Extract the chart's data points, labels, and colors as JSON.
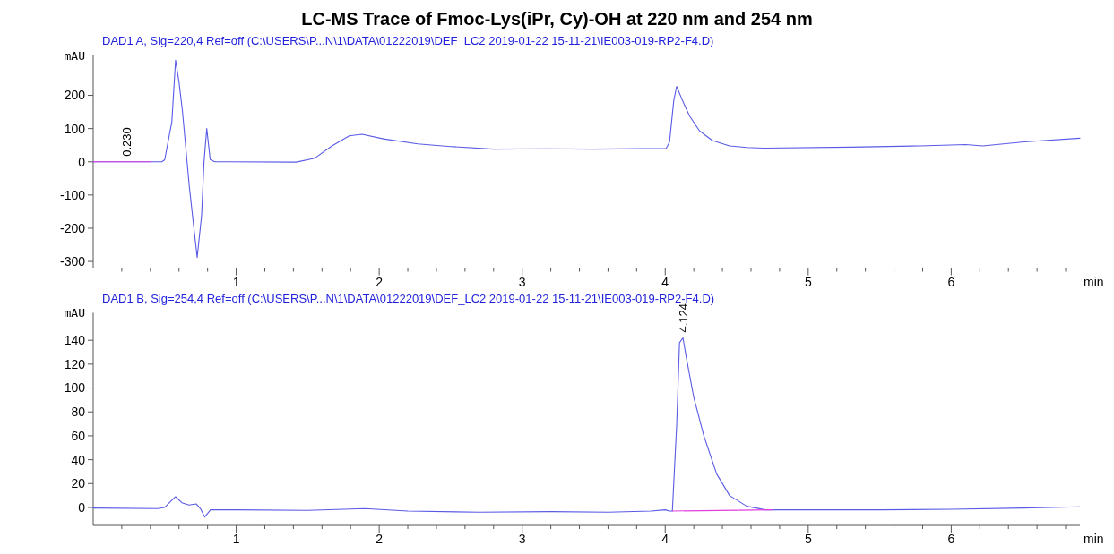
{
  "chart_data": [
    {
      "type": "line",
      "title": "LC-MS Trace of Fmoc-Lys(iPr, Cy)-OH at 220 nm and 254 nm",
      "subtitle": "DAD1 A, Sig=220,4 Ref=off (C:\\USERS\\P...N\\1\\DATA\\01222019\\DEF_LC2 2019-01-22 15-11-21\\IE003-019-RP2-F4.D)",
      "ylabel": "mAU",
      "xlabel": "min",
      "xlim": [
        0,
        6.9
      ],
      "ylim": [
        -320,
        320
      ],
      "xticks": [
        {
          "value": 0.2,
          "label": null
        },
        {
          "value": 0.4,
          "label": null
        },
        {
          "value": 0.6,
          "label": null
        },
        {
          "value": 0.8,
          "label": null
        },
        1,
        {
          "value": 1.2,
          "label": null
        },
        {
          "value": 1.4,
          "label": null
        },
        {
          "value": 1.6,
          "label": null
        },
        {
          "value": 1.8,
          "label": null
        },
        2,
        {
          "value": 2.2,
          "label": null
        },
        {
          "value": 2.4,
          "label": null
        },
        {
          "value": 2.6,
          "label": null
        },
        {
          "value": 2.8,
          "label": null
        },
        3,
        {
          "value": 3.2,
          "label": null
        },
        {
          "value": 3.4,
          "label": null
        },
        {
          "value": 3.6,
          "label": null
        },
        {
          "value": 3.8,
          "label": null
        },
        4,
        {
          "value": 4.2,
          "label": null
        },
        {
          "value": 4.4,
          "label": null
        },
        {
          "value": 4.6,
          "label": null
        },
        {
          "value": 4.8,
          "label": null
        },
        5,
        {
          "value": 5.2,
          "label": null
        },
        {
          "value": 5.4,
          "label": null
        },
        {
          "value": 5.6,
          "label": null
        },
        {
          "value": 5.8,
          "label": null
        },
        6,
        {
          "value": 6.2,
          "label": null
        },
        {
          "value": 6.4,
          "label": null
        },
        {
          "value": 6.6,
          "label": null
        },
        {
          "value": 6.8,
          "label": null
        }
      ],
      "yticks": [
        -300,
        -200,
        -100,
        0,
        100,
        200
      ],
      "grid": false,
      "marker": "none",
      "line_style": "solid",
      "series": [
        {
          "color": "#5a5ae6",
          "x": [
            0,
            0.48,
            0.5,
            0.55,
            0.576,
            0.6,
            0.624,
            0.673,
            0.727,
            0.758,
            0.775,
            0.794,
            0.818,
            0.85,
            1.42,
            1.55,
            1.67,
            1.79,
            1.88,
            2.03,
            2.27,
            2.5,
            2.8,
            3.16,
            3.5,
            4.006,
            4.03,
            4.06,
            4.08,
            4.12,
            4.17,
            4.24,
            4.33,
            4.45,
            4.57,
            4.69,
            5.3,
            5.78,
            6.1,
            6.22,
            6.51,
            6.9
          ],
          "values": [
            0,
            0,
            6,
            120,
            306,
            240,
            153,
            -78,
            -288,
            -162,
            0,
            100,
            7,
            0,
            -1,
            11,
            48,
            78,
            83,
            69,
            54,
            46,
            38,
            39,
            38,
            40,
            59,
            185,
            227,
            185,
            138,
            93,
            64,
            48,
            43,
            41,
            44,
            48,
            52,
            48,
            60,
            71
          ]
        },
        {
          "color": "#e040e0",
          "x": [
            0,
            0.4
          ],
          "values": [
            0,
            0
          ]
        }
      ],
      "annotations": [
        {
          "text": "0.230",
          "x": 0.23,
          "y": 0
        }
      ]
    },
    {
      "type": "line",
      "subtitle": "DAD1 B, Sig=254,4 Ref=off (C:\\USERS\\P...N\\1\\DATA\\01222019\\DEF_LC2 2019-01-22 15-11-21\\IE003-019-RP2-F4.D)",
      "ylabel": "mAU",
      "xlabel": "min",
      "xlim": [
        0,
        6.9
      ],
      "ylim": [
        -15,
        163
      ],
      "xticks": [
        {
          "value": 0.2,
          "label": null
        },
        {
          "value": 0.4,
          "label": null
        },
        {
          "value": 0.6,
          "label": null
        },
        {
          "value": 0.8,
          "label": null
        },
        1,
        {
          "value": 1.2,
          "label": null
        },
        {
          "value": 1.4,
          "label": null
        },
        {
          "value": 1.6,
          "label": null
        },
        {
          "value": 1.8,
          "label": null
        },
        2,
        {
          "value": 2.2,
          "label": null
        },
        {
          "value": 2.4,
          "label": null
        },
        {
          "value": 2.6,
          "label": null
        },
        {
          "value": 2.8,
          "label": null
        },
        3,
        {
          "value": 3.2,
          "label": null
        },
        {
          "value": 3.4,
          "label": null
        },
        {
          "value": 3.6,
          "label": null
        },
        {
          "value": 3.8,
          "label": null
        },
        4,
        {
          "value": 4.2,
          "label": null
        },
        {
          "value": 4.4,
          "label": null
        },
        {
          "value": 4.6,
          "label": null
        },
        {
          "value": 4.8,
          "label": null
        },
        5,
        {
          "value": 5.2,
          "label": null
        },
        {
          "value": 5.4,
          "label": null
        },
        {
          "value": 5.6,
          "label": null
        },
        {
          "value": 5.8,
          "label": null
        },
        6,
        {
          "value": 6.2,
          "label": null
        },
        {
          "value": 6.4,
          "label": null
        },
        {
          "value": 6.6,
          "label": null
        },
        {
          "value": 6.8,
          "label": null
        }
      ],
      "yticks": [
        0,
        20,
        40,
        60,
        80,
        100,
        120,
        140
      ],
      "grid": false,
      "marker": "none",
      "line_style": "solid",
      "series": [
        {
          "color": "#5a5ae6",
          "x": [
            0,
            0.45,
            0.5,
            0.55,
            0.576,
            0.62,
            0.67,
            0.72,
            0.75,
            0.78,
            0.82,
            1.0,
            1.5,
            1.9,
            2.2,
            2.7,
            3.2,
            3.6,
            3.9,
            4.0,
            4.03,
            4.05,
            4.08,
            4.1,
            4.124,
            4.15,
            4.2,
            4.27,
            4.36,
            4.45,
            4.57,
            4.7,
            5.0,
            5.5,
            6.0,
            6.5,
            6.9
          ],
          "values": [
            -0.5,
            -1,
            0,
            6,
            9,
            4,
            2,
            3,
            -1,
            -8,
            -2,
            -2,
            -2.5,
            -1,
            -3,
            -4,
            -3.5,
            -4,
            -3,
            -2,
            -3,
            -3,
            69,
            138,
            142,
            124,
            92,
            60,
            28,
            10,
            1,
            -2,
            -2,
            -2,
            -1.5,
            -0.5,
            0.5
          ]
        },
        {
          "color": "#e040e0",
          "x": [
            4.05,
            4.75
          ],
          "values": [
            -3,
            -2
          ]
        }
      ],
      "annotations": [
        {
          "text": "4.124",
          "x": 4.124,
          "y": 142
        }
      ]
    }
  ]
}
